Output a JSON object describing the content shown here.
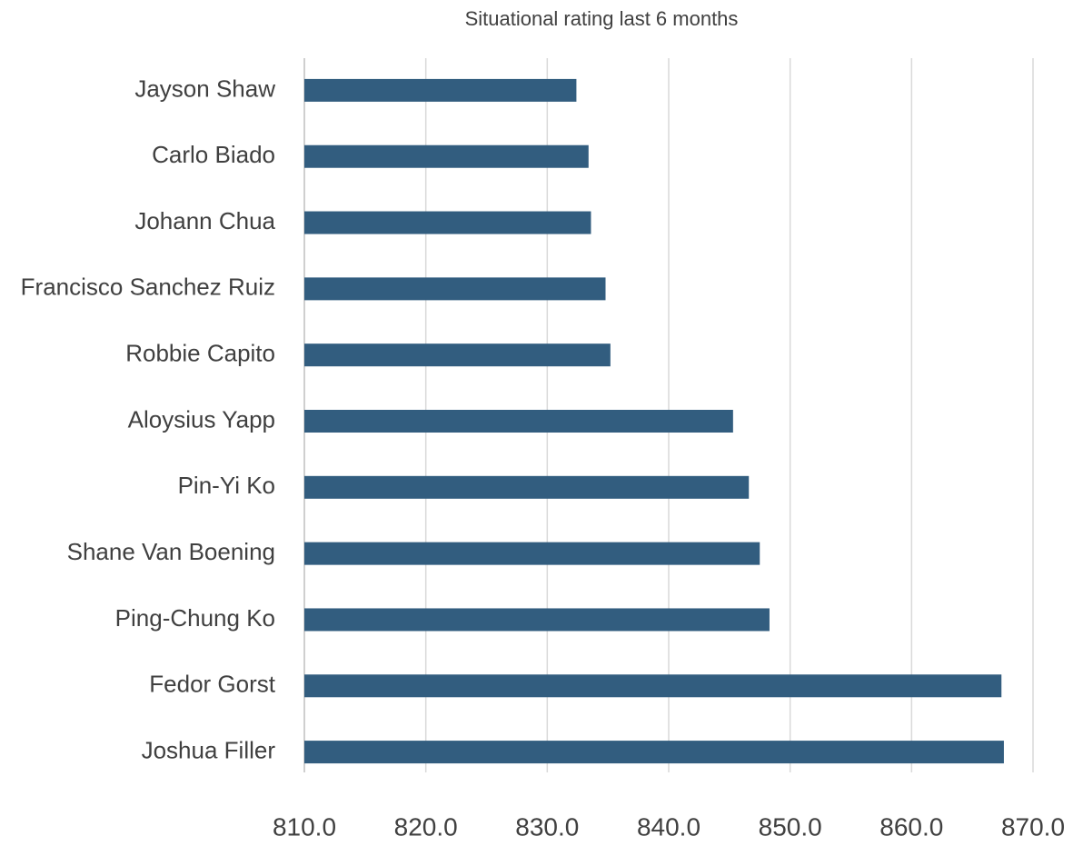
{
  "chart_data": {
    "type": "bar",
    "orientation": "horizontal",
    "title": "Situational rating last 6 months",
    "categories": [
      "Jayson Shaw",
      "Carlo Biado",
      "Johann Chua",
      "Francisco Sanchez Ruiz",
      "Robbie Capito",
      "Aloysius Yapp",
      "Pin-Yi Ko",
      "Shane Van Boening",
      "Ping-Chung Ko",
      "Fedor Gorst",
      "Joshua Filler"
    ],
    "values": [
      832.4,
      833.4,
      833.6,
      834.8,
      835.2,
      845.3,
      846.6,
      847.5,
      848.3,
      867.4,
      867.6
    ],
    "color": "#325d7f",
    "xlim": [
      810,
      870
    ],
    "xticks": [
      {
        "value": 810,
        "label": "810.0"
      },
      {
        "value": 820,
        "label": "820.0"
      },
      {
        "value": 830,
        "label": "830.0"
      },
      {
        "value": 840,
        "label": "840.0"
      },
      {
        "value": 850,
        "label": "850.0"
      },
      {
        "value": 860,
        "label": "860.0"
      },
      {
        "value": 870,
        "label": "870.0"
      }
    ],
    "grid": true
  }
}
